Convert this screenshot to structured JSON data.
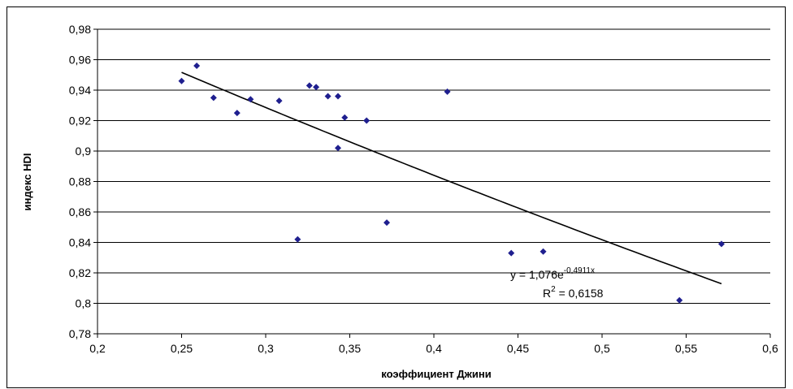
{
  "chart_data": {
    "type": "scatter",
    "xlabel": "коэффициент Джини",
    "ylabel": "индекс HDI",
    "xlim": [
      0.2,
      0.6
    ],
    "ylim": [
      0.78,
      0.98
    ],
    "x_ticks": [
      "0,2",
      "0,25",
      "0,3",
      "0,35",
      "0,4",
      "0,45",
      "0,5",
      "0,55",
      "0,6"
    ],
    "y_ticks": [
      "0,78",
      "0,8",
      "0,82",
      "0,84",
      "0,86",
      "0,88",
      "0,9",
      "0,92",
      "0,94",
      "0,96",
      "0,98"
    ],
    "grid": "horizontal",
    "marker_color": "#1f1f8f",
    "points": [
      {
        "x": 0.25,
        "y": 0.946
      },
      {
        "x": 0.259,
        "y": 0.956
      },
      {
        "x": 0.269,
        "y": 0.935
      },
      {
        "x": 0.283,
        "y": 0.925
      },
      {
        "x": 0.291,
        "y": 0.934
      },
      {
        "x": 0.308,
        "y": 0.933
      },
      {
        "x": 0.319,
        "y": 0.842
      },
      {
        "x": 0.326,
        "y": 0.943
      },
      {
        "x": 0.33,
        "y": 0.942
      },
      {
        "x": 0.337,
        "y": 0.936
      },
      {
        "x": 0.343,
        "y": 0.936
      },
      {
        "x": 0.343,
        "y": 0.902
      },
      {
        "x": 0.347,
        "y": 0.922
      },
      {
        "x": 0.36,
        "y": 0.92
      },
      {
        "x": 0.372,
        "y": 0.853
      },
      {
        "x": 0.408,
        "y": 0.939
      },
      {
        "x": 0.446,
        "y": 0.833
      },
      {
        "x": 0.465,
        "y": 0.834
      },
      {
        "x": 0.546,
        "y": 0.802
      },
      {
        "x": 0.571,
        "y": 0.839
      }
    ],
    "trendline": {
      "type": "exponential",
      "a": 1.076,
      "b": -0.4911,
      "x_range": [
        0.25,
        0.571
      ],
      "equation_prefix": "y = 1,076e",
      "equation_exponent": "-0,4911x",
      "r2_prefix": "R",
      "r2_exponent": "2",
      "r2_suffix": " = 0,6158"
    }
  }
}
